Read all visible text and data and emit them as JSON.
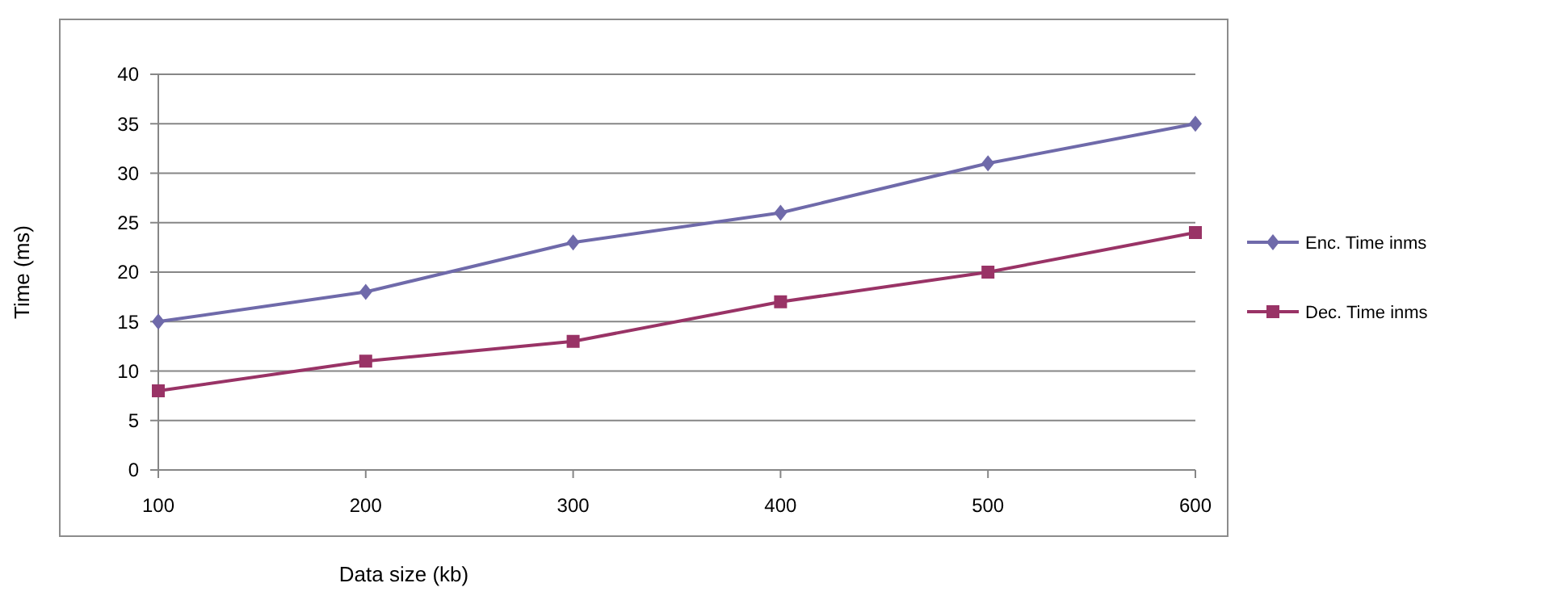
{
  "chart_data": {
    "type": "line",
    "xlabel": "Data size (kb)",
    "ylabel": "Time (ms)",
    "x": [
      100,
      200,
      300,
      400,
      500,
      600
    ],
    "xlim": [
      100,
      600
    ],
    "xticks": [
      100,
      200,
      300,
      400,
      500,
      600
    ],
    "ylim": [
      0,
      40
    ],
    "yticks": [
      0,
      5,
      10,
      15,
      20,
      25,
      30,
      35,
      40
    ],
    "grid": "y",
    "legend": "right",
    "series": [
      {
        "name": "Enc. Time inms",
        "color": "#6f6aaa",
        "marker": "diamond",
        "values": [
          15,
          18,
          23,
          26,
          31,
          35
        ]
      },
      {
        "name": "Dec. Time inms",
        "color": "#993366",
        "marker": "square",
        "values": [
          8,
          11,
          13,
          17,
          20,
          24
        ]
      }
    ]
  }
}
